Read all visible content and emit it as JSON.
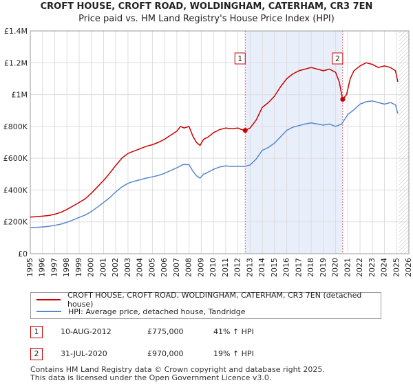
{
  "chart_data": {
    "type": "line",
    "title": "CROFT HOUSE, CROFT ROAD, WOLDINGHAM, CATERHAM, CR3 7EN",
    "subtitle": "Price paid vs. HM Land Registry's House Price Index (HPI)",
    "xlim": [
      1995,
      2026
    ],
    "ylim": [
      0,
      1400000
    ],
    "y_ticks": [
      0,
      200000,
      400000,
      600000,
      800000,
      1000000,
      1200000,
      1400000
    ],
    "y_tick_labels": [
      "£0",
      "£200K",
      "£400K",
      "£600K",
      "£800K",
      "£1M",
      "£1.2M",
      "£1.4M"
    ],
    "x_ticks": [
      1995,
      1996,
      1997,
      1998,
      1999,
      2000,
      2001,
      2002,
      2003,
      2004,
      2005,
      2006,
      2007,
      2008,
      2009,
      2010,
      2011,
      2012,
      2013,
      2014,
      2015,
      2016,
      2017,
      2018,
      2019,
      2020,
      2021,
      2022,
      2023,
      2024,
      2025,
      2026
    ],
    "grid": true,
    "shaded_period": [
      2012.6,
      2020.58
    ],
    "hatched_from": 2025.2,
    "series": [
      {
        "name": "CROFT HOUSE, CROFT ROAD, WOLDINGHAM, CATERHAM, CR3 7EN (detached house)",
        "color": "#cc0000",
        "x": [
          1995,
          1995.5,
          1996,
          1996.5,
          1997,
          1997.5,
          1998,
          1998.5,
          1999,
          1999.5,
          2000,
          2000.5,
          2001,
          2001.5,
          2002,
          2002.5,
          2003,
          2003.5,
          2004,
          2004.5,
          2005,
          2005.5,
          2006,
          2006.5,
          2007,
          2007.3,
          2007.6,
          2008,
          2008.3,
          2008.6,
          2008.9,
          2009.2,
          2009.5,
          2010,
          2010.5,
          2011,
          2011.5,
          2012,
          2012.3,
          2012.6,
          2013,
          2013.5,
          2014,
          2014.5,
          2015,
          2015.5,
          2016,
          2016.5,
          2017,
          2017.5,
          2018,
          2018.5,
          2019,
          2019.5,
          2020,
          2020.3,
          2020.5,
          2020.58,
          2020.9,
          2021.2,
          2021.5,
          2022,
          2022.5,
          2023,
          2023.5,
          2024,
          2024.5,
          2024.9,
          2025.1
        ],
        "values": [
          230000,
          233000,
          236000,
          240000,
          248000,
          260000,
          278000,
          300000,
          322000,
          345000,
          380000,
          420000,
          460000,
          505000,
          555000,
          600000,
          630000,
          645000,
          660000,
          675000,
          685000,
          700000,
          720000,
          745000,
          770000,
          800000,
          790000,
          800000,
          740000,
          700000,
          680000,
          720000,
          730000,
          760000,
          780000,
          790000,
          785000,
          790000,
          780000,
          775000,
          790000,
          840000,
          920000,
          950000,
          990000,
          1050000,
          1100000,
          1130000,
          1150000,
          1160000,
          1170000,
          1160000,
          1150000,
          1160000,
          1140000,
          1080000,
          1000000,
          970000,
          1000000,
          1100000,
          1150000,
          1180000,
          1200000,
          1190000,
          1170000,
          1180000,
          1170000,
          1150000,
          1080000
        ]
      },
      {
        "name": "HPI: Average price, detached house, Tandridge",
        "color": "#5588cc",
        "x": [
          1995,
          1995.5,
          1996,
          1996.5,
          1997,
          1997.5,
          1998,
          1998.5,
          1999,
          1999.5,
          2000,
          2000.5,
          2001,
          2001.5,
          2002,
          2002.5,
          2003,
          2003.5,
          2004,
          2004.5,
          2005,
          2005.5,
          2006,
          2006.5,
          2007,
          2007.5,
          2008,
          2008.3,
          2008.6,
          2008.9,
          2009.2,
          2009.5,
          2010,
          2010.5,
          2011,
          2011.5,
          2012,
          2012.5,
          2013,
          2013.5,
          2014,
          2014.5,
          2015,
          2015.5,
          2016,
          2016.5,
          2017,
          2017.5,
          2018,
          2018.5,
          2019,
          2019.5,
          2020,
          2020.5,
          2021,
          2021.5,
          2022,
          2022.5,
          2023,
          2023.5,
          2024,
          2024.5,
          2024.9,
          2025.1
        ],
        "values": [
          163000,
          165000,
          168000,
          172000,
          178000,
          186000,
          197000,
          212000,
          228000,
          243000,
          265000,
          293000,
          322000,
          352000,
          388000,
          420000,
          442000,
          455000,
          465000,
          475000,
          483000,
          492000,
          505000,
          523000,
          540000,
          560000,
          560000,
          520000,
          490000,
          475000,
          500000,
          510000,
          530000,
          545000,
          552000,
          548000,
          550000,
          548000,
          558000,
          595000,
          650000,
          668000,
          695000,
          735000,
          775000,
          795000,
          805000,
          815000,
          822000,
          815000,
          808000,
          815000,
          800000,
          815000,
          875000,
          905000,
          940000,
          955000,
          960000,
          950000,
          940000,
          950000,
          935000,
          880000
        ]
      }
    ],
    "sale_points": [
      {
        "label": "1",
        "x": 2012.6,
        "y": 775000
      },
      {
        "label": "2",
        "x": 2020.58,
        "y": 970000
      }
    ],
    "legend_position": "below"
  },
  "transactions": [
    {
      "num": "1",
      "date": "10-AUG-2012",
      "price": "£775,000",
      "hpi": "41% ↑ HPI"
    },
    {
      "num": "2",
      "date": "31-JUL-2020",
      "price": "£970,000",
      "hpi": "19% ↑ HPI"
    }
  ],
  "footer": {
    "line1": "Contains HM Land Registry data © Crown copyright and database right 2025.",
    "line2": "This data is licensed under the Open Government Licence v3.0."
  },
  "colors": {
    "red": "#cc0000",
    "blue": "#5588cc",
    "shade": "#e8eefa",
    "grid": "#dddddd"
  }
}
